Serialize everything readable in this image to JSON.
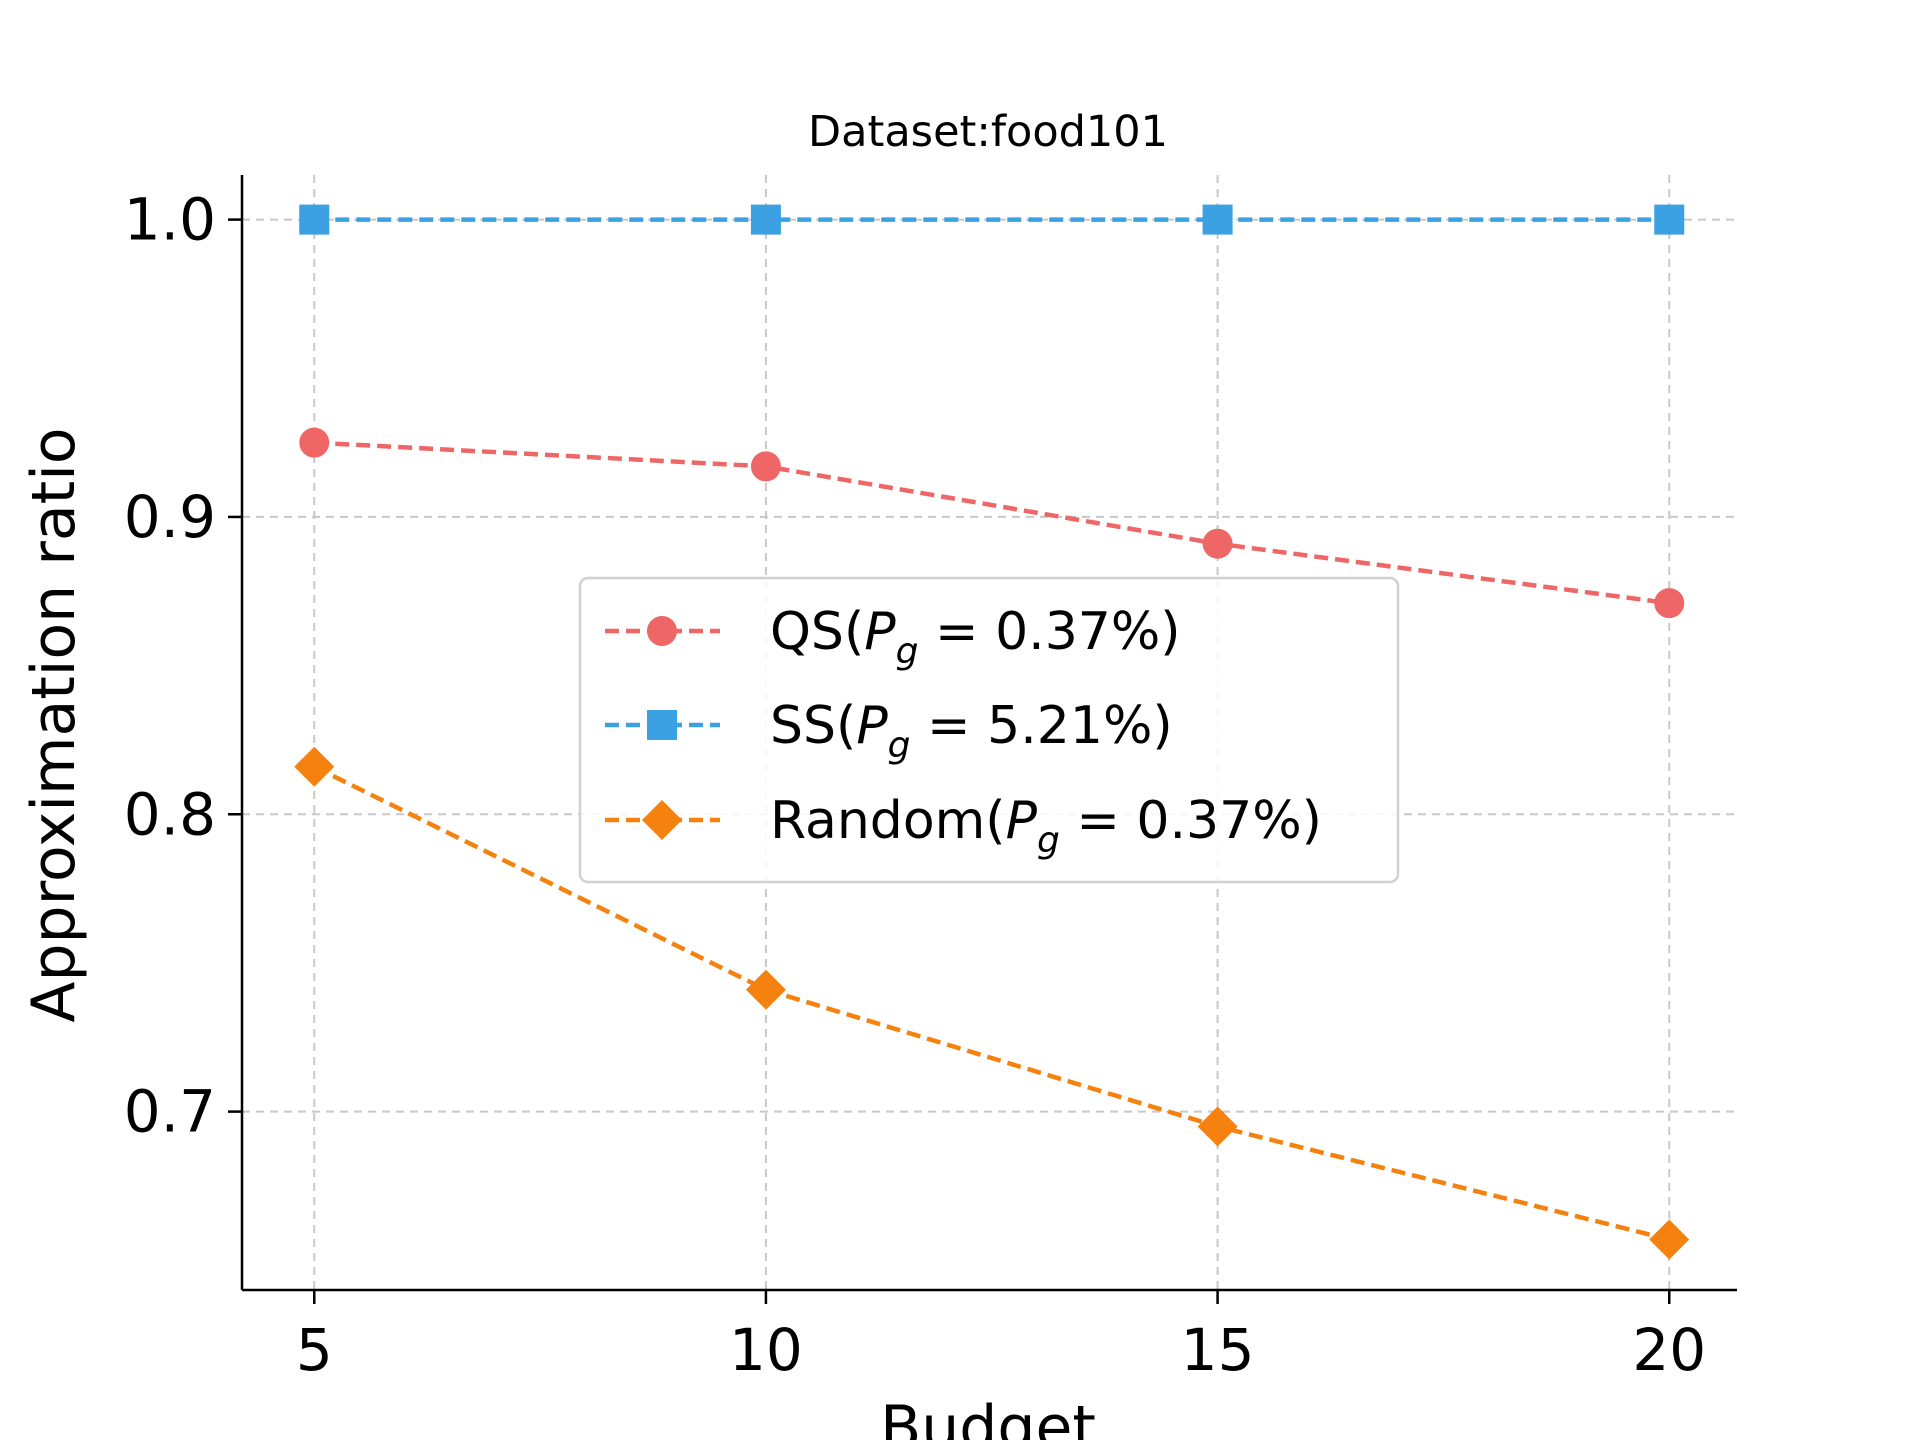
{
  "chart_data": {
    "type": "line",
    "title": "Dataset:food101",
    "xlabel": "Budget",
    "ylabel": "Approximation ratio",
    "x": [
      5,
      10,
      15,
      20
    ],
    "xticks": [
      "5",
      "10",
      "15",
      "20"
    ],
    "yticks": [
      "0.7",
      "0.8",
      "0.9",
      "1.0"
    ],
    "xlim": [
      4.2,
      20.75
    ],
    "ylim": [
      0.64,
      1.015
    ],
    "grid": true,
    "legend_position": "center",
    "series": [
      {
        "name": "QS",
        "pg": "0.37%",
        "values": [
          0.925,
          0.917,
          0.891,
          0.871
        ],
        "color": "#ee6666",
        "marker": "circle"
      },
      {
        "name": "SS",
        "pg": "5.21%",
        "values": [
          1.0,
          1.0,
          1.0,
          1.0
        ],
        "color": "#3ba1e2",
        "marker": "square"
      },
      {
        "name": "Random",
        "pg": "0.37%",
        "values": [
          0.816,
          0.741,
          0.695,
          0.657
        ],
        "color": "#f5820f",
        "marker": "diamond"
      }
    ]
  }
}
